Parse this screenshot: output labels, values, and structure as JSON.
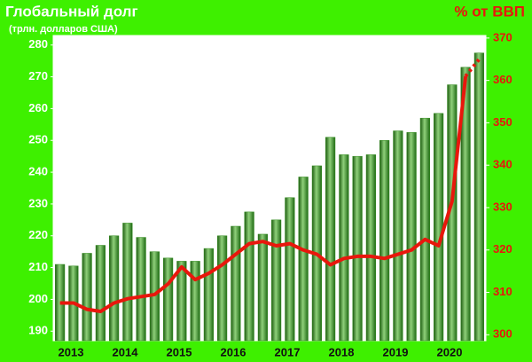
{
  "chart_data": {
    "type": "bar",
    "title": "Глобальный долг",
    "subtitle": "(трлн. долларов США)",
    "y2_title": "% от ВВП",
    "categories": [
      "2013",
      null,
      null,
      null,
      "2014",
      null,
      null,
      null,
      "2015",
      null,
      null,
      null,
      "2016",
      null,
      null,
      null,
      "2017",
      null,
      null,
      null,
      "2018",
      null,
      null,
      null,
      "2019",
      null,
      null,
      null,
      "2020",
      null,
      null,
      null
    ],
    "series": [
      {
        "type": "bar",
        "color": "#2f8a1a",
        "values": [
          211,
          210.5,
          214.5,
          217,
          220,
          224,
          219.5,
          215,
          213,
          212,
          212,
          216,
          220,
          223,
          227.5,
          220.5,
          225,
          232,
          238.5,
          242,
          251,
          245.5,
          245,
          245.5,
          250,
          253,
          252.5,
          257,
          258.5,
          267.5,
          273,
          277.5
        ]
      },
      {
        "type": "line",
        "axis": "y2",
        "color": "#e8170c",
        "values": [
          307.5,
          307.5,
          306,
          305.5,
          307.5,
          308.5,
          309,
          309.5,
          312,
          316,
          313,
          314.5,
          316.5,
          319,
          321.5,
          322,
          321,
          321.5,
          320,
          319,
          316.5,
          318,
          318.5,
          318.5,
          318,
          319,
          320,
          322.5,
          321,
          331.5,
          361,
          null
        ]
      },
      {
        "type": "line",
        "axis": "y2",
        "dashed": true,
        "color": "#e8170c",
        "values": [
          null,
          null,
          null,
          null,
          null,
          null,
          null,
          null,
          null,
          null,
          null,
          null,
          null,
          null,
          null,
          null,
          null,
          null,
          null,
          null,
          null,
          null,
          null,
          null,
          null,
          null,
          null,
          null,
          null,
          null,
          361,
          365
        ]
      }
    ],
    "ylim": [
      187,
      283
    ],
    "yticks": [
      190,
      200,
      210,
      220,
      230,
      240,
      250,
      260,
      270,
      280
    ],
    "y2lim": [
      298.6,
      370.6
    ],
    "y2ticks": [
      300,
      310,
      320,
      330,
      340,
      350,
      360,
      370
    ]
  }
}
